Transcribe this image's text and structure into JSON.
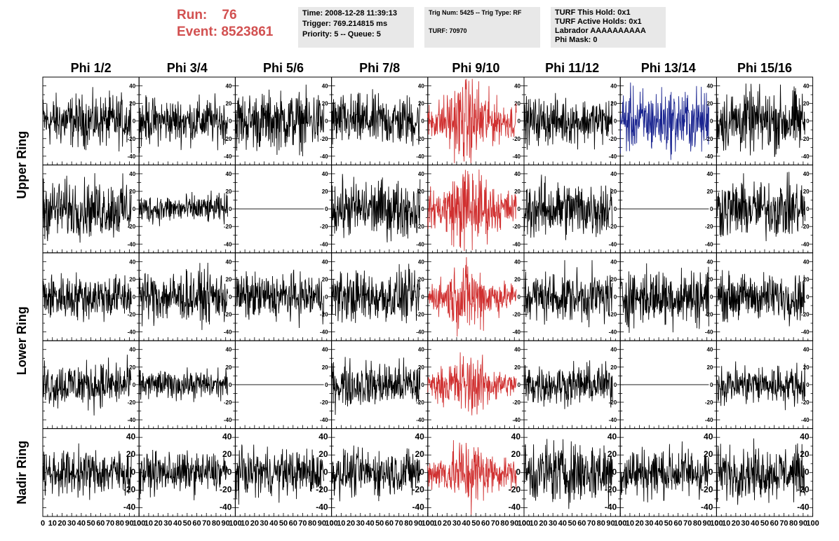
{
  "header": {
    "run_label": "Run:",
    "run_value": "76",
    "event_label": "Event:",
    "event_value": "8523861",
    "accent_color": "#d25050",
    "time_box": [
      "Time: 2008-12-28 11:39:13",
      "Trigger: 769.214815 ms",
      "Priority: 5 -- Queue: 5"
    ],
    "trig_box": [
      "Trig Num: 5425 -- Trig Type: RF",
      "",
      "TURF: 70970"
    ],
    "turf_box": [
      "TURF This Hold: 0x1",
      "TURF Active Holds: 0x1",
      "Labrador AAAAAAAAAA",
      "Phi Mask: 0"
    ]
  },
  "chart_data": {
    "type": "line",
    "columns": [
      "Phi 1/2",
      "Phi 3/4",
      "Phi 5/6",
      "Phi 7/8",
      "Phi 9/10",
      "Phi 11/12",
      "Phi 13/14",
      "Phi 15/16"
    ],
    "ring_labels": [
      {
        "label": "Upper Ring",
        "rows": [
          0,
          1
        ]
      },
      {
        "label": "Lower Ring",
        "rows": [
          2,
          3
        ]
      },
      {
        "label": "Nadir Ring",
        "rows": [
          4,
          4
        ]
      }
    ],
    "xlim": [
      0,
      100
    ],
    "x_tick_labels": [
      "0",
      "10",
      "20",
      "30",
      "40",
      "50",
      "60",
      "70",
      "80",
      "90",
      "100"
    ],
    "ylim": [
      -50,
      50
    ],
    "y_tick_labels": [
      "-40",
      "-20",
      "0",
      "20",
      "40"
    ],
    "colors": {
      "default": "#000000",
      "highlight_red": "#d03030",
      "highlight_blue": "#1a2590"
    },
    "series_color_grid": [
      [
        "k",
        "k",
        "k",
        "k",
        "r",
        "k",
        "b",
        "k"
      ],
      [
        "k",
        "k",
        "k",
        "k",
        "r",
        "k",
        "k",
        "k"
      ],
      [
        "k",
        "k",
        "k",
        "k",
        "r",
        "k",
        "k",
        "k"
      ],
      [
        "k",
        "k",
        "k",
        "k",
        "r",
        "k",
        "k",
        "k"
      ],
      [
        "k",
        "k",
        "k",
        "k",
        "r",
        "k",
        "k",
        "k"
      ]
    ],
    "amplitude_grid": [
      [
        18,
        16,
        20,
        18,
        22,
        16,
        22,
        22
      ],
      [
        20,
        10,
        0,
        20,
        22,
        20,
        0,
        20
      ],
      [
        16,
        18,
        16,
        18,
        18,
        18,
        20,
        16
      ],
      [
        16,
        10,
        0,
        16,
        16,
        14,
        0,
        14
      ],
      [
        16,
        14,
        16,
        16,
        18,
        22,
        18,
        18
      ]
    ],
    "n_samples": 260
  }
}
